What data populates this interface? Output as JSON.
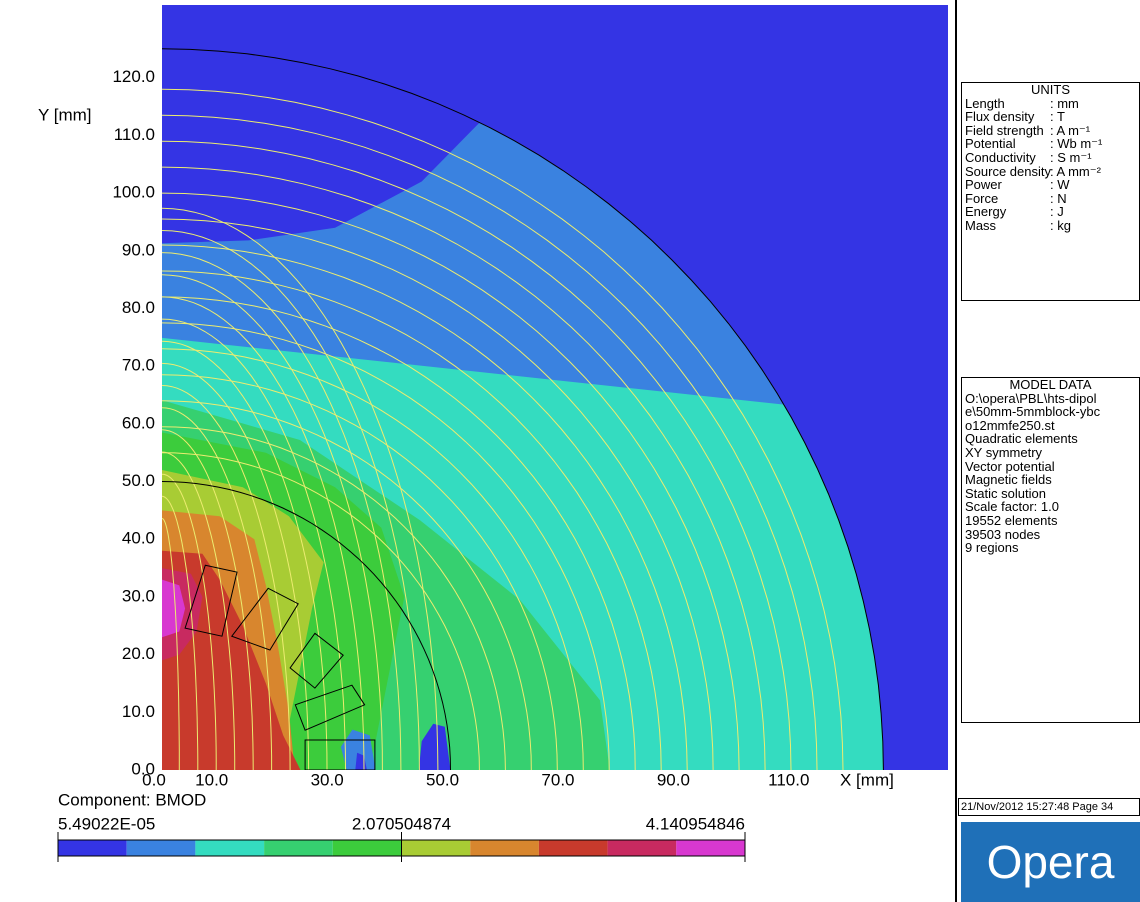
{
  "chart_data": {
    "type": "contour",
    "x_label": "X [mm]",
    "y_label": "Y [mm]",
    "xlim": [
      0,
      136.2
    ],
    "ylim": [
      0,
      132.6
    ],
    "xticks": [
      {
        "value": 0,
        "label": "0.0"
      },
      {
        "value": 10,
        "label": "10.0"
      },
      {
        "value": 30,
        "label": "30.0"
      },
      {
        "value": 50,
        "label": "50.0"
      },
      {
        "value": 70,
        "label": "70.0"
      },
      {
        "value": 90,
        "label": "90.0"
      },
      {
        "value": 110,
        "label": "110.0"
      }
    ],
    "yticks": [
      {
        "value": 0,
        "label": "0.0"
      },
      {
        "value": 10,
        "label": "10.0"
      },
      {
        "value": 20,
        "label": "20.0"
      },
      {
        "value": 30,
        "label": "30.0"
      },
      {
        "value": 40,
        "label": "40.0"
      },
      {
        "value": 50,
        "label": "50.0"
      },
      {
        "value": 60,
        "label": "60.0"
      },
      {
        "value": 70,
        "label": "70.0"
      },
      {
        "value": 80,
        "label": "80.0"
      },
      {
        "value": 90,
        "label": "90.0"
      },
      {
        "value": 100,
        "label": "100.0"
      },
      {
        "value": 110,
        "label": "110.0"
      },
      {
        "value": 120,
        "label": "120.0"
      }
    ],
    "colorbar": {
      "title": "Component: BMOD",
      "labels": [
        {
          "value": 5.49022e-05,
          "label": "5.49022E-05"
        },
        {
          "value": 2.070504874,
          "label": "2.070504874"
        },
        {
          "value": 4.140954846,
          "label": "4.140954846"
        }
      ],
      "colors": [
        "#3434e4",
        "#3a82e0",
        "#34dcc0",
        "#36d070",
        "#3ccc3c",
        "#a8cc34",
        "#d8862e",
        "#c83a2c",
        "#c82a60",
        "#d838d0"
      ]
    }
  },
  "units_panel": {
    "title": "UNITS",
    "rows": [
      [
        "Length",
        ": mm"
      ],
      [
        "Flux density",
        ": T"
      ],
      [
        "Field strength",
        ": A m⁻¹"
      ],
      [
        "Potential",
        ": Wb m⁻¹"
      ],
      [
        "Conductivity",
        ": S m⁻¹"
      ],
      [
        "Source density",
        ": A mm⁻²"
      ],
      [
        "Power",
        ": W"
      ],
      [
        "Force",
        ": N"
      ],
      [
        "Energy",
        ": J"
      ],
      [
        "Mass",
        ": kg"
      ]
    ]
  },
  "model_panel": {
    "title": "MODEL DATA",
    "lines": [
      "O:\\opera\\PBL\\hts-dipol",
      "e\\50mm-5mmblock-ybc",
      "o12mmfe250.st",
      "Quadratic elements",
      "XY symmetry",
      "Vector potential",
      "Magnetic fields",
      "Static solution",
      "Scale factor: 1.0",
      "19552 elements",
      "39503 nodes",
      "9 regions"
    ]
  },
  "footer": {
    "timestamp": "21/Nov/2012 15:27:48 Page 34"
  },
  "logo": "Opera"
}
